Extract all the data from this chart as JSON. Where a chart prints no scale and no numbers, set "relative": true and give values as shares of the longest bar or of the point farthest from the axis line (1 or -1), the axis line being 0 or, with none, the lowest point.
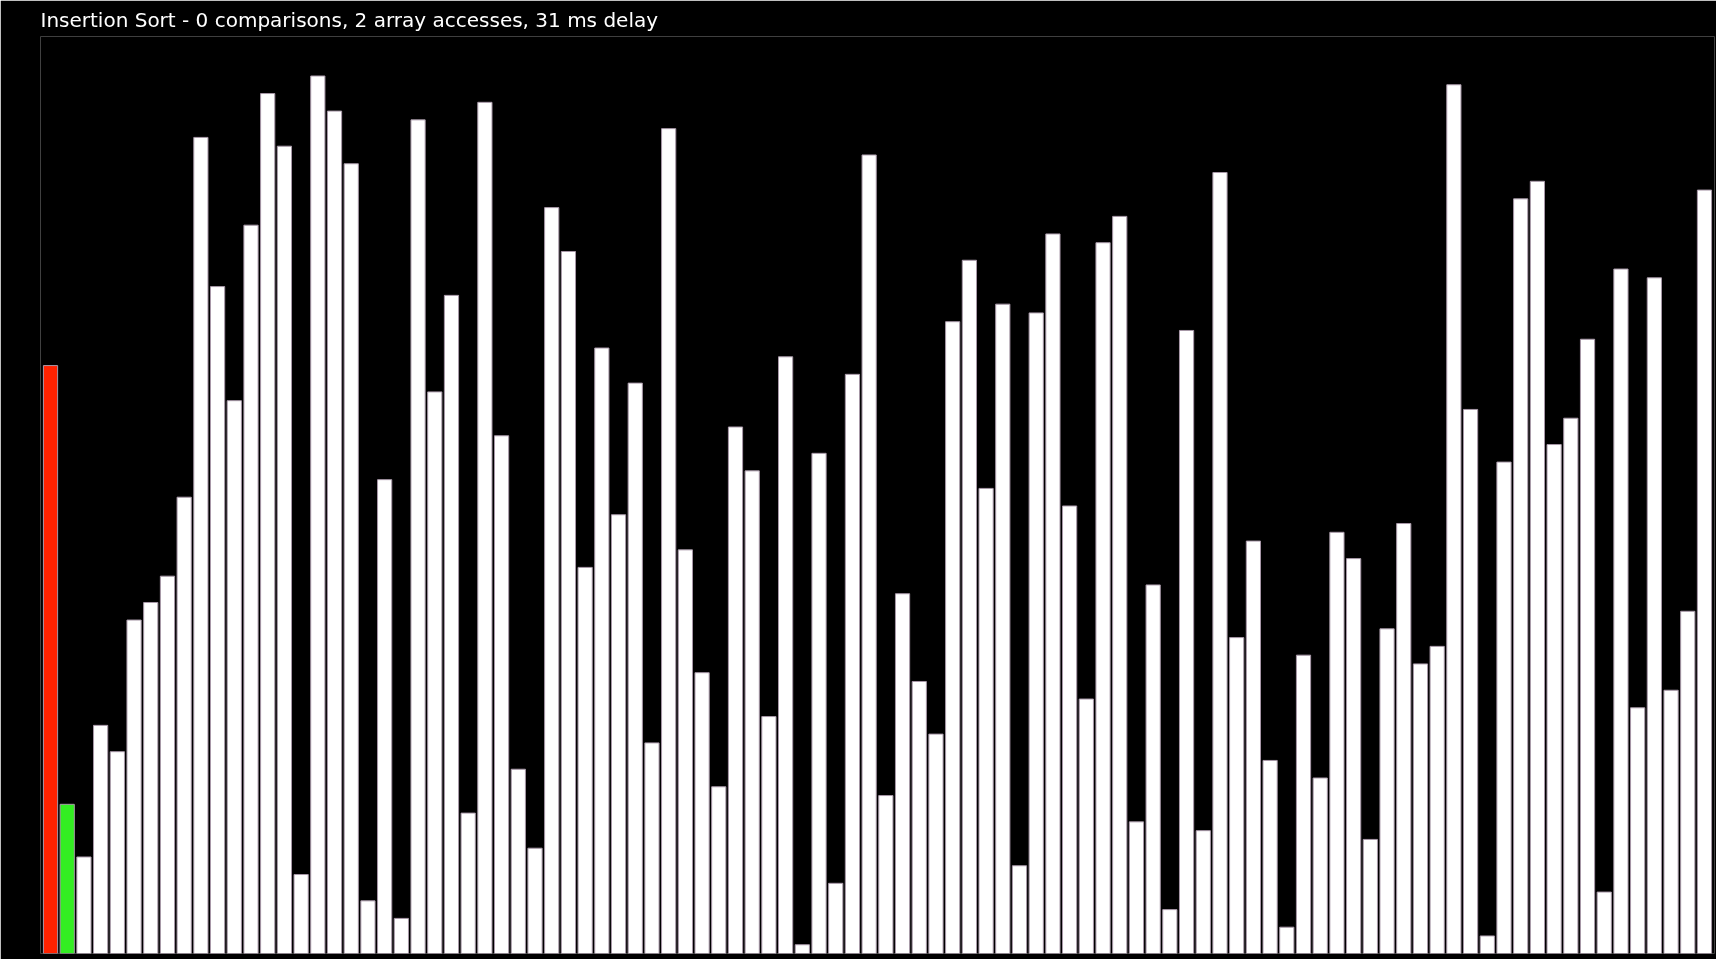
{
  "chart_data": {
    "type": "bar",
    "title": "Insertion Sort - 0 comparisons, 2 array accesses, 31 ms delay",
    "relative": true,
    "categories": [
      null,
      null,
      null,
      null,
      null,
      null,
      null,
      null,
      null,
      null,
      null,
      null,
      null,
      null,
      null,
      null,
      null,
      null,
      null,
      null,
      null,
      null,
      null,
      null,
      null,
      null,
      null,
      null,
      null,
      null,
      null,
      null,
      null,
      null,
      null,
      null,
      null,
      null,
      null,
      null,
      null,
      null,
      null,
      null,
      null,
      null,
      null,
      null,
      null,
      null,
      null,
      null,
      null,
      null,
      null,
      null,
      null,
      null,
      null,
      null,
      null,
      null,
      null,
      null,
      null,
      null,
      null,
      null,
      null,
      null,
      null,
      null,
      null,
      null,
      null,
      null,
      null,
      null,
      null,
      null,
      null,
      null,
      null,
      null,
      null,
      null,
      null,
      null,
      null,
      null,
      null,
      null,
      null,
      null,
      null,
      null,
      null,
      null,
      null,
      null
    ],
    "values": [
      0.67,
      0.17,
      0.11,
      0.26,
      0.23,
      0.38,
      0.4,
      0.43,
      0.52,
      0.93,
      0.76,
      0.63,
      0.83,
      0.98,
      0.92,
      0.09,
      1,
      0.96,
      0.9,
      0.06,
      0.54,
      0.04,
      0.95,
      0.64,
      0.75,
      0.16,
      0.97,
      0.59,
      0.21,
      0.12,
      0.85,
      0.8,
      0.44,
      0.69,
      0.5,
      0.65,
      0.24,
      0.94,
      0.46,
      0.32,
      0.19,
      0.6,
      0.55,
      0.27,
      0.68,
      0.01,
      0.57,
      0.08,
      0.66,
      0.91,
      0.18,
      0.41,
      0.31,
      0.25,
      0.72,
      0.79,
      0.53,
      0.74,
      0.1,
      0.73,
      0.82,
      0.51,
      0.29,
      0.81,
      0.84,
      0.15,
      0.42,
      0.05,
      0.71,
      0.14,
      0.89,
      0.36,
      0.47,
      0.22,
      0.03,
      0.34,
      0.2,
      0.48,
      0.45,
      0.13,
      0.37,
      0.49,
      0.33,
      0.35,
      0.99,
      0.62,
      0.02,
      0.56,
      0.86,
      0.88,
      0.58,
      0.61,
      0.7,
      0.07,
      0.78,
      0.28,
      0.77,
      0.3,
      0.39,
      0.87
    ],
    "colors": [
      "#ff2200",
      "#33ee22",
      "#ffffff",
      "#ffffff",
      "#ffffff",
      "#ffffff",
      "#ffffff",
      "#ffffff",
      "#ffffff",
      "#ffffff",
      "#ffffff",
      "#ffffff",
      "#ffffff",
      "#ffffff",
      "#ffffff",
      "#ffffff",
      "#ffffff",
      "#ffffff",
      "#ffffff",
      "#ffffff",
      "#ffffff",
      "#ffffff",
      "#ffffff",
      "#ffffff",
      "#ffffff",
      "#ffffff",
      "#ffffff",
      "#ffffff",
      "#ffffff",
      "#ffffff",
      "#ffffff",
      "#ffffff",
      "#ffffff",
      "#ffffff",
      "#ffffff",
      "#ffffff",
      "#ffffff",
      "#ffffff",
      "#ffffff",
      "#ffffff",
      "#ffffff",
      "#ffffff",
      "#ffffff",
      "#ffffff",
      "#ffffff",
      "#ffffff",
      "#ffffff",
      "#ffffff",
      "#ffffff",
      "#ffffff",
      "#ffffff",
      "#ffffff",
      "#ffffff",
      "#ffffff",
      "#ffffff",
      "#ffffff",
      "#ffffff",
      "#ffffff",
      "#ffffff",
      "#ffffff",
      "#ffffff",
      "#ffffff",
      "#ffffff",
      "#ffffff",
      "#ffffff",
      "#ffffff",
      "#ffffff",
      "#ffffff",
      "#ffffff",
      "#ffffff",
      "#ffffff",
      "#ffffff",
      "#ffffff",
      "#ffffff",
      "#ffffff",
      "#ffffff",
      "#ffffff",
      "#ffffff",
      "#ffffff",
      "#ffffff",
      "#ffffff",
      "#ffffff",
      "#ffffff",
      "#ffffff",
      "#ffffff",
      "#ffffff",
      "#ffffff",
      "#ffffff",
      "#ffffff",
      "#ffffff",
      "#ffffff",
      "#ffffff",
      "#ffffff",
      "#ffffff",
      "#ffffff",
      "#ffffff",
      "#ffffff",
      "#ffffff",
      "#ffffff",
      "#ffffff"
    ]
  }
}
